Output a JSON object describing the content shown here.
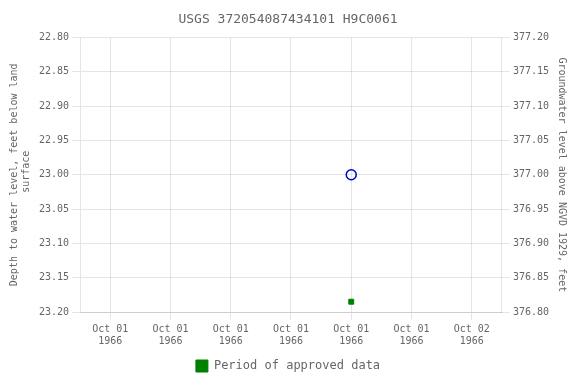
{
  "chart_data": {
    "type": "scatter",
    "title": "USGS 372054087434101 H9C0061",
    "ylabel": "Depth to water level, feet below land\n surface",
    "y2label": "Groundwater level above NGVD 1929, feet",
    "categories": [
      "Oct 01\n1966",
      "Oct 01\n1966",
      "Oct 01\n1966",
      "Oct 01\n1966",
      "Oct 01\n1966",
      "Oct 01\n1966",
      "Oct 02\n1966"
    ],
    "series": [
      {
        "color": "#0000cc",
        "marker": "circle",
        "values": [
          null,
          null,
          null,
          null,
          23.0,
          null,
          null
        ]
      },
      {
        "name": "Period of approved data",
        "color": "#008000",
        "marker": "square",
        "values": [
          null,
          null,
          null,
          null,
          23.185,
          null,
          null
        ]
      }
    ],
    "ylim": [
      23.2,
      22.8
    ],
    "yticks": [
      {
        "value": 22.8,
        "label": "22.80"
      },
      {
        "value": 22.85,
        "label": "22.85"
      },
      {
        "value": 22.9,
        "label": "22.90"
      },
      {
        "value": 22.95,
        "label": "22.95"
      },
      {
        "value": 23.0,
        "label": "23.00"
      },
      {
        "value": 23.05,
        "label": "23.05"
      },
      {
        "value": 23.1,
        "label": "23.10"
      },
      {
        "value": 23.15,
        "label": "23.15"
      },
      {
        "value": 23.2,
        "label": "23.20"
      }
    ],
    "y2lim": [
      376.8,
      377.2
    ],
    "y2ticks": [
      {
        "value": 377.2,
        "label": "377.20"
      },
      {
        "value": 377.15,
        "label": "377.15"
      },
      {
        "value": 377.1,
        "label": "377.10"
      },
      {
        "value": 377.05,
        "label": "377.05"
      },
      {
        "value": 377.0,
        "label": "377.00"
      },
      {
        "value": 376.95,
        "label": "376.95"
      },
      {
        "value": 376.9,
        "label": "376.90"
      },
      {
        "value": 376.85,
        "label": "376.85"
      },
      {
        "value": 376.8,
        "label": "376.80"
      }
    ],
    "grid": true,
    "legend": "bottom"
  }
}
